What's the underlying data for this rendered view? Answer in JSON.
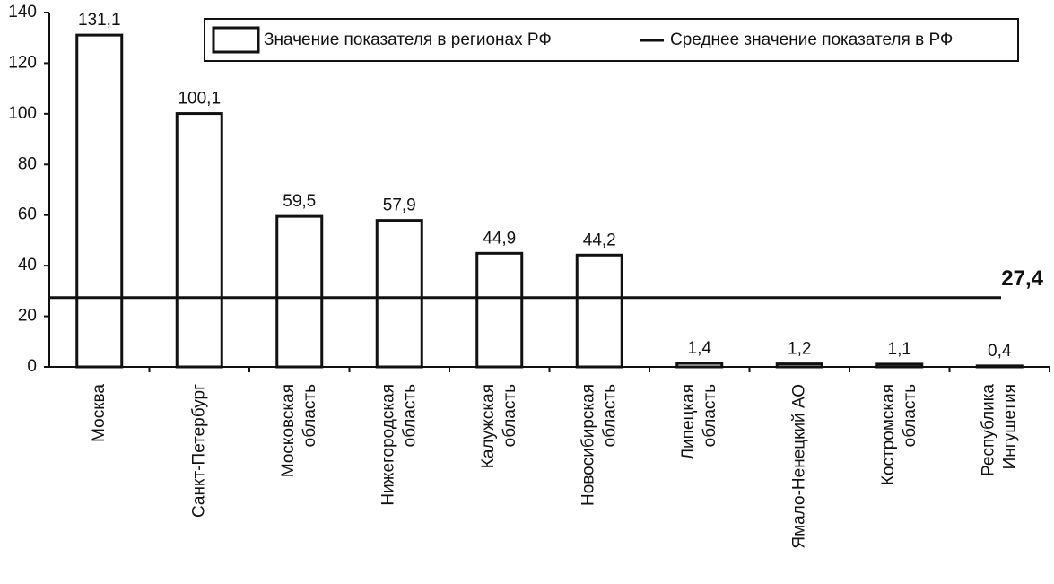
{
  "chart_data": {
    "type": "bar",
    "categories": [
      [
        "Москва"
      ],
      [
        "Санкт-Петербург"
      ],
      [
        "Московская",
        "область"
      ],
      [
        "Нижегородская",
        "область"
      ],
      [
        "Калужская",
        "область"
      ],
      [
        "Новосибирская",
        "область"
      ],
      [
        "Липецкая",
        "область"
      ],
      [
        "Ямало-Ненецкий АО"
      ],
      [
        "Костромская",
        "область"
      ],
      [
        "Республика",
        "Ингушетия"
      ]
    ],
    "series": [
      {
        "name": "Значение показателя в регионах РФ",
        "color": "#ffffff",
        "values": [
          131.1,
          100.1,
          59.5,
          57.9,
          44.9,
          44.2,
          1.4,
          1.2,
          1.1,
          0.4
        ],
        "value_labels": [
          "131,1",
          "100,1",
          "59,5",
          "57,9",
          "44,9",
          "44,2",
          "1,4",
          "1,2",
          "1,1",
          "0,4"
        ]
      }
    ],
    "reference_line": {
      "name": "Среднее значение показателя в РФ",
      "value": 27.4,
      "value_label": "27,4"
    },
    "ylim": [
      0,
      140
    ],
    "yticks": [
      0,
      20,
      40,
      60,
      80,
      100,
      120,
      140
    ]
  }
}
